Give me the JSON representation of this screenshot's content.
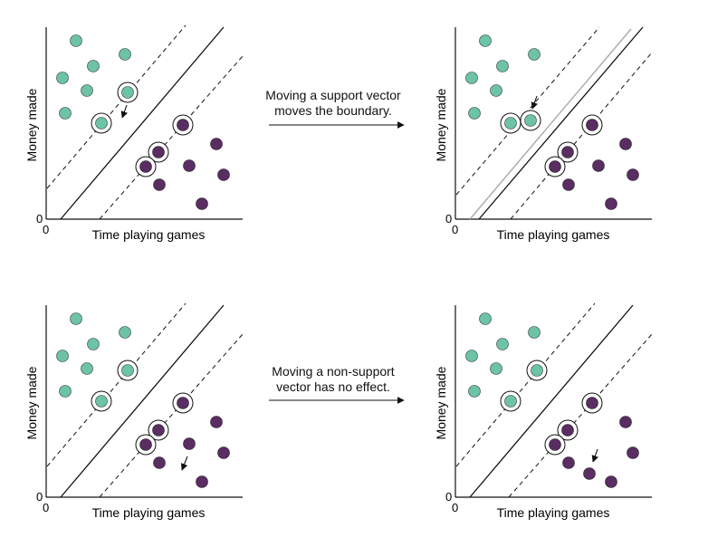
{
  "axis_labels": {
    "x": "Time playing games",
    "y": "Money made",
    "origin_x": "0",
    "origin_y": "0"
  },
  "captions": {
    "top": [
      "Moving a support vector",
      "moves the boundary."
    ],
    "bottom": [
      "Moving a non-support",
      "vector has no effect."
    ]
  },
  "colors": {
    "class_a": "#6cc4a4",
    "class_b": "#5a2d63",
    "line": "#111111",
    "old_boundary": "#aaaaaa",
    "background": "#ffffff"
  }
}
